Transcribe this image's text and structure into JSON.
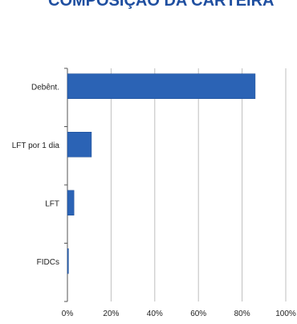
{
  "title": "COMPOSIÇÃO DA CARTEIRA",
  "chart_data": {
    "type": "bar",
    "orientation": "horizontal",
    "categories": [
      "Debênt.",
      "LFT por 1 dia",
      "LFT",
      "FIDCs"
    ],
    "values": [
      86,
      11,
      3,
      0.5
    ],
    "xlim": [
      0,
      100
    ],
    "xticks": [
      0,
      20,
      40,
      60,
      80,
      100
    ],
    "tick_labels": [
      "0%",
      "20%",
      "40%",
      "60%",
      "80%",
      "100%"
    ],
    "grid": true,
    "bar_color": "#2b63b5",
    "grid_color": "#bfbfbf"
  }
}
